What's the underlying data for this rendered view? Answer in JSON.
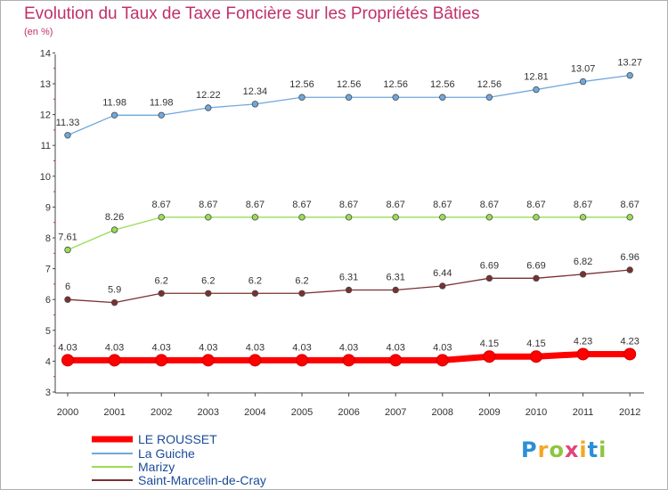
{
  "title": "Evolution du Taux de Taxe Foncière sur les Propriétés Bâties",
  "subtitle": "(en %)",
  "logo": "Proxiti",
  "chart_data": {
    "type": "line",
    "x": [
      "2000",
      "2001",
      "2002",
      "2003",
      "2004",
      "2005",
      "2006",
      "2007",
      "2008",
      "2009",
      "2010",
      "2011",
      "2012"
    ],
    "yticks": [
      3,
      4,
      5,
      6,
      7,
      8,
      9,
      10,
      11,
      12,
      13,
      14
    ],
    "ylim": [
      3,
      14
    ],
    "grid": false,
    "legend_position": "bottom-left",
    "series": [
      {
        "name": "LE ROUSSET",
        "color": "#ff0000",
        "values": [
          4.03,
          4.03,
          4.03,
          4.03,
          4.03,
          4.03,
          4.03,
          4.03,
          4.03,
          4.15,
          4.15,
          4.23,
          4.23
        ],
        "labels": [
          "4.03",
          "4.03",
          "4.03",
          "4.03",
          "4.03",
          "4.03",
          "4.03",
          "4.03",
          "4.03",
          "4.15",
          "4.15",
          "4.23",
          "4.23"
        ]
      },
      {
        "name": "La Guiche",
        "color": "#6fa8dc",
        "values": [
          11.33,
          11.98,
          11.98,
          12.22,
          12.34,
          12.56,
          12.56,
          12.56,
          12.56,
          12.56,
          12.81,
          13.07,
          13.27
        ],
        "labels": [
          "11.33",
          "11.98",
          "11.98",
          "12.22",
          "12.34",
          "12.56",
          "12.56",
          "12.56",
          "12.56",
          "12.56",
          "12.81",
          "13.07",
          "13.27"
        ]
      },
      {
        "name": "Marizy",
        "color": "#99dd55",
        "values": [
          7.61,
          8.26,
          8.67,
          8.67,
          8.67,
          8.67,
          8.67,
          8.67,
          8.67,
          8.67,
          8.67,
          8.67,
          8.67
        ],
        "labels": [
          "7.61",
          "8.26",
          "8.67",
          "8.67",
          "8.67",
          "8.67",
          "8.67",
          "8.67",
          "8.67",
          "8.67",
          "8.67",
          "8.67",
          "8.67"
        ]
      },
      {
        "name": "Saint-Marcelin-de-Cray",
        "color": "#7a3030",
        "values": [
          6,
          5.9,
          6.2,
          6.2,
          6.2,
          6.2,
          6.31,
          6.31,
          6.44,
          6.69,
          6.69,
          6.82,
          6.96
        ],
        "labels": [
          "6",
          "5.9",
          "6.2",
          "6.2",
          "6.2",
          "6.2",
          "6.31",
          "6.31",
          "6.44",
          "6.69",
          "6.69",
          "6.82",
          "6.96"
        ]
      }
    ]
  }
}
